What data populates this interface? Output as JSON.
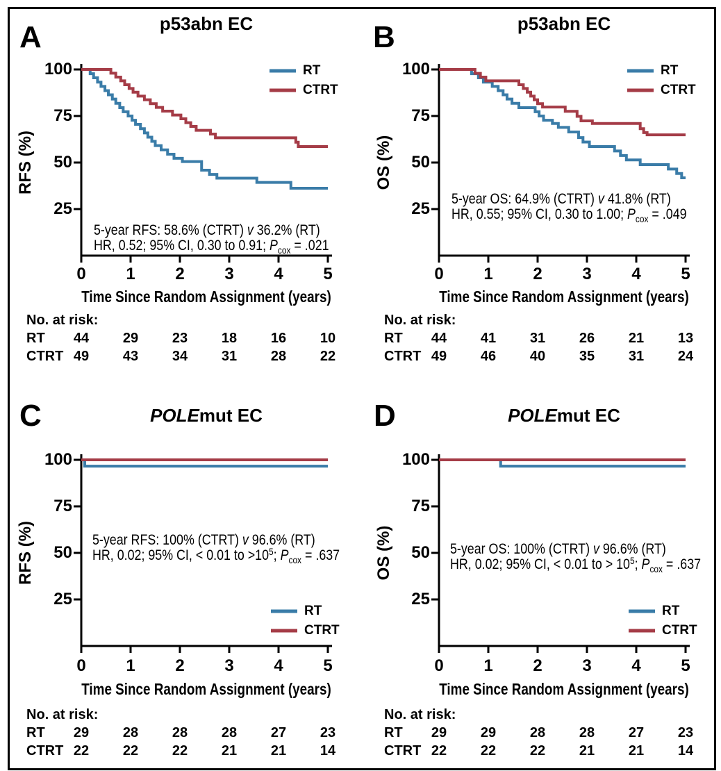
{
  "figure": {
    "border_color": "#000000",
    "background": "#ffffff"
  },
  "colors": {
    "rt": "#3a7ca8",
    "ctrt": "#a53c47",
    "axis": "#000000",
    "text": "#000000"
  },
  "x_ticks": [
    "0",
    "1",
    "2",
    "3",
    "4",
    "5"
  ],
  "y_ticks": [
    "100",
    "75",
    "50",
    "25"
  ],
  "chart_data": [
    {
      "panel": "A",
      "type": "line",
      "subtype": "kaplan-meier-step",
      "title_parts": [
        {
          "text": "p53abn EC",
          "italic": false
        }
      ],
      "ylabel": "RFS (%)",
      "xlabel": "Time Since Random Assignment (years)",
      "xlim": [
        0,
        5
      ],
      "ylim": [
        0,
        100
      ],
      "grid": false,
      "legend_position": "top-right",
      "series": [
        {
          "name": "RT",
          "color_key": "rt",
          "points": [
            [
              0,
              100
            ],
            [
              0.18,
              97.7
            ],
            [
              0.25,
              95.5
            ],
            [
              0.33,
              93.2
            ],
            [
              0.4,
              90.9
            ],
            [
              0.48,
              88.6
            ],
            [
              0.55,
              86.4
            ],
            [
              0.63,
              84.1
            ],
            [
              0.7,
              81.8
            ],
            [
              0.78,
              79.5
            ],
            [
              0.85,
              77.3
            ],
            [
              0.95,
              75.0
            ],
            [
              1.03,
              72.7
            ],
            [
              1.1,
              70.5
            ],
            [
              1.2,
              68.2
            ],
            [
              1.28,
              65.9
            ],
            [
              1.35,
              63.6
            ],
            [
              1.43,
              61.4
            ],
            [
              1.5,
              59.1
            ],
            [
              1.62,
              56.8
            ],
            [
              1.75,
              54.5
            ],
            [
              1.88,
              52.3
            ],
            [
              2.05,
              50.5
            ],
            [
              2.44,
              45.9
            ],
            [
              2.6,
              43.6
            ],
            [
              2.75,
              41.6
            ],
            [
              3.56,
              39.3
            ],
            [
              4.25,
              36.2
            ]
          ]
        },
        {
          "name": "CTRT",
          "color_key": "ctrt",
          "points": [
            [
              0,
              100
            ],
            [
              0.6,
              98.0
            ],
            [
              0.7,
              95.9
            ],
            [
              0.8,
              93.9
            ],
            [
              0.88,
              91.8
            ],
            [
              0.97,
              89.8
            ],
            [
              1.05,
              87.8
            ],
            [
              1.15,
              85.7
            ],
            [
              1.28,
              83.7
            ],
            [
              1.4,
              81.6
            ],
            [
              1.52,
              79.6
            ],
            [
              1.65,
              77.6
            ],
            [
              1.85,
              75.5
            ],
            [
              2.02,
              73.5
            ],
            [
              2.12,
              71.4
            ],
            [
              2.22,
              69.4
            ],
            [
              2.33,
              67.3
            ],
            [
              2.62,
              65.3
            ],
            [
              2.72,
              63.3
            ],
            [
              4.35,
              60.9
            ],
            [
              4.4,
              58.6
            ]
          ]
        }
      ],
      "annotation_lines": [
        [
          {
            "t": "5-year RFS: 58.6% (CTRT) "
          },
          {
            "t": "v",
            "style": "i"
          },
          {
            "t": " 36.2% (RT)"
          }
        ],
        [
          {
            "t": "HR, 0.52; 95% CI, 0.30 to 0.91; "
          },
          {
            "t": "P",
            "style": "i"
          },
          {
            "t": "cox",
            "style": "sub"
          },
          {
            "t": " = .021"
          }
        ]
      ],
      "risk_table": {
        "header": "No. at risk:",
        "rows": [
          {
            "label": "RT",
            "values": [
              "44",
              "29",
              "23",
              "18",
              "16",
              "10"
            ]
          },
          {
            "label": "CTRT",
            "values": [
              "49",
              "43",
              "34",
              "31",
              "28",
              "22"
            ]
          }
        ]
      }
    },
    {
      "panel": "B",
      "type": "line",
      "subtype": "kaplan-meier-step",
      "title_parts": [
        {
          "text": "p53abn EC",
          "italic": false
        }
      ],
      "ylabel": "OS (%)",
      "xlabel": "Time Since Random Assignment (years)",
      "xlim": [
        0,
        5
      ],
      "ylim": [
        0,
        100
      ],
      "grid": false,
      "legend_position": "top-right",
      "series": [
        {
          "name": "RT",
          "color_key": "rt",
          "points": [
            [
              0,
              100
            ],
            [
              0.66,
              97.7
            ],
            [
              0.8,
              95.5
            ],
            [
              0.9,
              93.2
            ],
            [
              1.08,
              90.9
            ],
            [
              1.2,
              88.6
            ],
            [
              1.3,
              86.4
            ],
            [
              1.38,
              84.1
            ],
            [
              1.48,
              81.8
            ],
            [
              1.62,
              79.5
            ],
            [
              1.95,
              77.3
            ],
            [
              2.03,
              75.0
            ],
            [
              2.12,
              72.7
            ],
            [
              2.3,
              71.0
            ],
            [
              2.42,
              68.9
            ],
            [
              2.63,
              66.4
            ],
            [
              2.83,
              63.4
            ],
            [
              2.92,
              61.0
            ],
            [
              3.05,
              58.6
            ],
            [
              3.56,
              56.2
            ],
            [
              3.68,
              53.8
            ],
            [
              3.8,
              51.4
            ],
            [
              4.08,
              48.9
            ],
            [
              4.65,
              46.5
            ],
            [
              4.82,
              44.1
            ],
            [
              4.92,
              41.8
            ]
          ]
        },
        {
          "name": "CTRT",
          "color_key": "ctrt",
          "points": [
            [
              0,
              100
            ],
            [
              0.73,
              97.9
            ],
            [
              0.84,
              95.9
            ],
            [
              0.95,
              93.9
            ],
            [
              1.62,
              91.8
            ],
            [
              1.71,
              89.8
            ],
            [
              1.79,
              87.8
            ],
            [
              1.86,
              85.7
            ],
            [
              1.93,
              83.7
            ],
            [
              2.0,
              81.6
            ],
            [
              2.1,
              79.8
            ],
            [
              2.56,
              77.5
            ],
            [
              2.8,
              74.8
            ],
            [
              2.88,
              72.4
            ],
            [
              3.11,
              71.0
            ],
            [
              4.08,
              68.2
            ],
            [
              4.15,
              66.1
            ],
            [
              4.22,
              64.9
            ]
          ]
        }
      ],
      "annotation_lines": [
        [
          {
            "t": "5-year OS: 64.9% (CTRT) "
          },
          {
            "t": "v",
            "style": "i"
          },
          {
            "t": " 41.8% (RT)"
          }
        ],
        [
          {
            "t": "HR, 0.55; 95% CI, 0.30 to 1.00; "
          },
          {
            "t": "P",
            "style": "i"
          },
          {
            "t": "cox",
            "style": "sub"
          },
          {
            "t": " = .049"
          }
        ]
      ],
      "risk_table": {
        "header": "No. at risk:",
        "rows": [
          {
            "label": "RT",
            "values": [
              "44",
              "41",
              "31",
              "26",
              "21",
              "13"
            ]
          },
          {
            "label": "CTRT",
            "values": [
              "49",
              "46",
              "40",
              "35",
              "31",
              "24"
            ]
          }
        ]
      }
    },
    {
      "panel": "C",
      "type": "line",
      "subtype": "kaplan-meier-step",
      "title_parts": [
        {
          "text": "POLE",
          "italic": true
        },
        {
          "text": "mut EC",
          "italic": false
        }
      ],
      "ylabel": "RFS (%)",
      "xlabel": "Time Since Random Assignment (years)",
      "xlim": [
        0,
        5
      ],
      "ylim": [
        0,
        100
      ],
      "grid": false,
      "legend_position": "bottom-right",
      "series": [
        {
          "name": "RT",
          "color_key": "rt",
          "points": [
            [
              0,
              100
            ],
            [
              0.07,
              96.6
            ]
          ]
        },
        {
          "name": "CTRT",
          "color_key": "ctrt",
          "points": [
            [
              0,
              100
            ]
          ]
        }
      ],
      "annotation_lines": [
        [
          {
            "t": "5-year RFS: 100% (CTRT) "
          },
          {
            "t": "v",
            "style": "i"
          },
          {
            "t": " 96.6% (RT)"
          }
        ],
        [
          {
            "t": "HR, 0.02; 95% CI, < 0.01 to >10"
          },
          {
            "t": "5",
            "style": "sup"
          },
          {
            "t": "; "
          },
          {
            "t": "P",
            "style": "i"
          },
          {
            "t": "cox",
            "style": "sub"
          },
          {
            "t": " = .637"
          }
        ]
      ],
      "risk_table": {
        "header": "No. at risk:",
        "rows": [
          {
            "label": "RT",
            "values": [
              "29",
              "28",
              "28",
              "28",
              "27",
              "23"
            ]
          },
          {
            "label": "CTRT",
            "values": [
              "22",
              "22",
              "22",
              "21",
              "21",
              "14"
            ]
          }
        ]
      }
    },
    {
      "panel": "D",
      "type": "line",
      "subtype": "kaplan-meier-step",
      "title_parts": [
        {
          "text": "POLE",
          "italic": true
        },
        {
          "text": "mut EC",
          "italic": false
        }
      ],
      "ylabel": "OS (%)",
      "xlabel": "Time Since Random Assignment (years)",
      "xlim": [
        0,
        5
      ],
      "ylim": [
        0,
        100
      ],
      "grid": false,
      "legend_position": "bottom-right",
      "series": [
        {
          "name": "RT",
          "color_key": "rt",
          "points": [
            [
              0,
              100
            ],
            [
              1.25,
              96.6
            ]
          ]
        },
        {
          "name": "CTRT",
          "color_key": "ctrt",
          "points": [
            [
              0,
              100
            ]
          ]
        }
      ],
      "annotation_lines": [
        [
          {
            "t": "5-year OS: 100% (CTRT) "
          },
          {
            "t": "v",
            "style": "i"
          },
          {
            "t": " 96.6% (RT)"
          }
        ],
        [
          {
            "t": "HR, 0.02; 95% CI, < 0.01 to > 10"
          },
          {
            "t": "5",
            "style": "sup"
          },
          {
            "t": "; "
          },
          {
            "t": "P",
            "style": "i"
          },
          {
            "t": "cox",
            "style": "sub"
          },
          {
            "t": " = .637"
          }
        ]
      ],
      "risk_table": {
        "header": "No. at risk:",
        "rows": [
          {
            "label": "RT",
            "values": [
              "29",
              "29",
              "28",
              "28",
              "27",
              "23"
            ]
          },
          {
            "label": "CTRT",
            "values": [
              "22",
              "22",
              "22",
              "21",
              "21",
              "14"
            ]
          }
        ]
      }
    }
  ]
}
